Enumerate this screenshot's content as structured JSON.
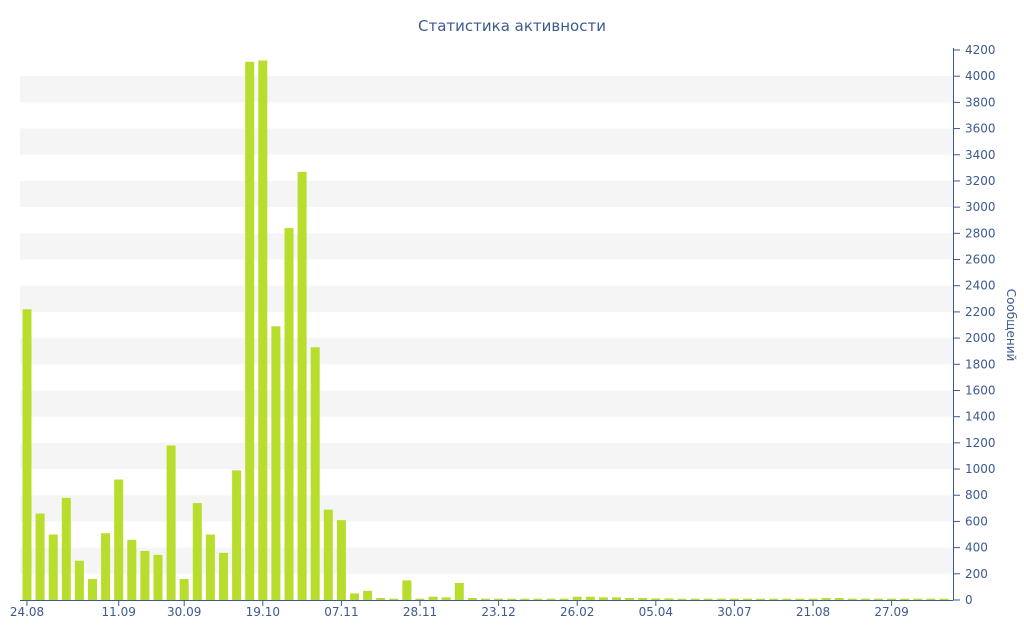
{
  "colors": {
    "bar": "#b8dd2c",
    "axis": "#3d5a8f",
    "band": "#f5f5f5",
    "background": "#ffffff"
  },
  "chart_data": {
    "type": "bar",
    "title": "Статистика активности",
    "xlabel": "",
    "ylabel": "Сообщений",
    "y_axis_side": "right",
    "ylim": [
      0,
      4200
    ],
    "y_ticks": [
      0,
      200,
      400,
      600,
      800,
      1000,
      1200,
      1400,
      1600,
      1800,
      2000,
      2200,
      2400,
      2600,
      2800,
      3000,
      3200,
      3400,
      3600,
      3800,
      4000,
      4200
    ],
    "x_tick_labels": [
      {
        "index": 0,
        "label": "24.08"
      },
      {
        "index": 7,
        "label": "11.09"
      },
      {
        "index": 12,
        "label": "30.09"
      },
      {
        "index": 18,
        "label": "19.10"
      },
      {
        "index": 24,
        "label": "07.11"
      },
      {
        "index": 30,
        "label": "28.11"
      },
      {
        "index": 36,
        "label": "23.12"
      },
      {
        "index": 42,
        "label": "26.02"
      },
      {
        "index": 48,
        "label": "05.04"
      },
      {
        "index": 54,
        "label": "30.07"
      },
      {
        "index": 60,
        "label": "21.08"
      },
      {
        "index": 66,
        "label": "27.09"
      }
    ],
    "values": [
      2220,
      660,
      500,
      780,
      300,
      160,
      510,
      920,
      460,
      375,
      345,
      1180,
      160,
      740,
      500,
      360,
      990,
      4110,
      4120,
      2090,
      2840,
      3270,
      1930,
      690,
      610,
      50,
      70,
      15,
      10,
      150,
      10,
      25,
      20,
      130,
      15,
      10,
      10,
      10,
      10,
      10,
      10,
      10,
      25,
      25,
      20,
      20,
      15,
      15,
      12,
      12,
      10,
      10,
      10,
      10,
      10,
      10,
      10,
      10,
      10,
      10,
      10,
      15,
      15,
      10,
      10,
      10,
      10,
      10,
      10,
      10,
      10
    ]
  }
}
